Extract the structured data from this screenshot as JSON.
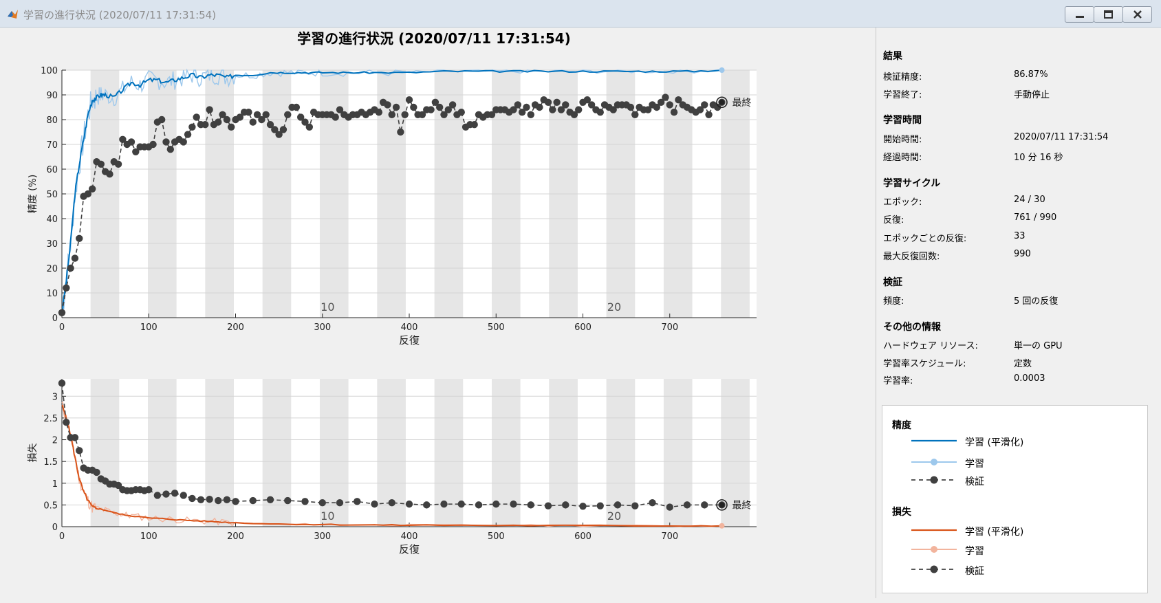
{
  "window": {
    "title": "学習の進行状況 (2020/07/11 17:31:54)",
    "buttons": [
      "minimize",
      "maximize",
      "close"
    ]
  },
  "plot_title": "学習の進行状況 (2020/07/11 17:31:54)",
  "final_label": "最終",
  "chart_data": [
    {
      "type": "line",
      "name": "accuracy",
      "xlabel": "反復",
      "ylabel": "精度 (%)",
      "xlim": [
        0,
        800
      ],
      "ylim": [
        0,
        100
      ],
      "xticks": [
        0,
        100,
        200,
        300,
        400,
        500,
        600,
        700
      ],
      "yticks": [
        0,
        10,
        20,
        30,
        40,
        50,
        60,
        70,
        80,
        90,
        100
      ],
      "epoch_labels": [
        {
          "epoch": "10",
          "x": 306
        },
        {
          "epoch": "20",
          "x": 636
        }
      ],
      "epoch_length": 33,
      "grid": true,
      "series": [
        {
          "name": "学習 (平滑化)",
          "color": "#0072bd",
          "x": [
            0,
            5,
            10,
            15,
            20,
            25,
            30,
            35,
            40,
            45,
            50,
            60,
            70,
            80,
            90,
            100,
            110,
            120,
            130,
            140,
            150,
            160,
            170,
            180,
            190,
            200,
            220,
            240,
            260,
            280,
            300,
            330,
            360,
            400,
            440,
            480,
            520,
            560,
            600,
            640,
            680,
            720,
            760
          ],
          "y": [
            2,
            15,
            30,
            50,
            62,
            72,
            82,
            88,
            89,
            90,
            90,
            89,
            92,
            95,
            94,
            96,
            96,
            95,
            96,
            97,
            98,
            97,
            98,
            98,
            97,
            98,
            98,
            99,
            99,
            99,
            99,
            99,
            99,
            99,
            99.5,
            99.5,
            99.5,
            99.5,
            99.5,
            99.5,
            99.5,
            99.5,
            100
          ]
        },
        {
          "name": "学習",
          "color": "#9dc8ec"
        },
        {
          "name": "検証",
          "color": "#404040",
          "style": "dashed-marker",
          "x": [
            0,
            5,
            10,
            15,
            20,
            25,
            30,
            35,
            40,
            45,
            50,
            55,
            60,
            65,
            70,
            75,
            80,
            85,
            90,
            95,
            100,
            105,
            110,
            115,
            120,
            125,
            130,
            135,
            140,
            145,
            150,
            155,
            160,
            165,
            170,
            175,
            180,
            185,
            190,
            195,
            200,
            205,
            210,
            215,
            220,
            225,
            230,
            235,
            240,
            245,
            250,
            255,
            260,
            265,
            270,
            275,
            280,
            285,
            290,
            295,
            300,
            305,
            310,
            315,
            320,
            325,
            330,
            335,
            340,
            345,
            350,
            355,
            360,
            365,
            370,
            375,
            380,
            385,
            390,
            395,
            400,
            405,
            410,
            415,
            420,
            425,
            430,
            435,
            440,
            445,
            450,
            455,
            460,
            465,
            470,
            475,
            480,
            485,
            490,
            495,
            500,
            505,
            510,
            515,
            520,
            525,
            530,
            535,
            540,
            545,
            550,
            555,
            560,
            565,
            570,
            575,
            580,
            585,
            590,
            595,
            600,
            605,
            610,
            615,
            620,
            625,
            630,
            635,
            640,
            645,
            650,
            655,
            660,
            665,
            670,
            675,
            680,
            685,
            690,
            695,
            700,
            705,
            710,
            715,
            720,
            725,
            730,
            735,
            740,
            745,
            750,
            755,
            760
          ],
          "y": [
            2,
            12,
            20,
            24,
            32,
            49,
            50,
            52,
            63,
            62,
            59,
            58,
            63,
            62,
            72,
            70,
            71,
            67,
            69,
            69,
            69,
            70,
            79,
            80,
            71,
            68,
            71,
            72,
            71,
            74,
            77,
            81,
            78,
            78,
            84,
            78,
            79,
            82,
            80,
            77,
            80,
            81,
            83,
            83,
            79,
            82,
            80,
            82,
            78,
            76,
            74,
            76,
            82,
            85,
            85,
            81,
            79,
            77,
            83,
            82,
            82,
            82,
            82,
            81,
            84,
            82,
            81,
            82,
            82,
            83,
            82,
            83,
            84,
            83,
            87,
            86,
            82,
            85,
            75,
            82,
            88,
            85,
            82,
            82,
            84,
            84,
            87,
            85,
            82,
            84,
            86,
            82,
            83,
            77,
            78,
            78,
            82,
            81,
            82,
            82,
            84,
            84,
            84,
            83,
            84,
            86,
            83,
            85,
            82,
            86,
            85,
            88,
            87,
            84,
            87,
            84,
            86,
            83,
            82,
            84,
            87,
            88,
            86,
            84,
            83,
            86,
            85,
            84,
            86,
            86,
            86,
            85,
            82,
            85,
            84,
            84,
            86,
            85,
            87,
            89,
            86,
            83,
            88,
            86,
            85,
            84,
            83,
            84,
            86,
            82,
            86,
            85,
            87
          ]
        }
      ]
    },
    {
      "type": "line",
      "name": "loss",
      "xlabel": "反復",
      "ylabel": "損失",
      "xlim": [
        0,
        800
      ],
      "ylim": [
        0,
        3.4
      ],
      "xticks": [
        0,
        100,
        200,
        300,
        400,
        500,
        600,
        700
      ],
      "yticks": [
        0,
        0.5,
        1,
        1.5,
        2,
        2.5,
        3
      ],
      "ytick_labels": [
        "0",
        "0.5",
        "1",
        "1.5",
        "2",
        "2.5",
        "3"
      ],
      "epoch_labels": [
        {
          "epoch": "10",
          "x": 306
        },
        {
          "epoch": "20",
          "x": 636
        }
      ],
      "grid": true,
      "series": [
        {
          "name": "学習 (平滑化)",
          "color": "#d95319",
          "x": [
            0,
            5,
            10,
            15,
            20,
            25,
            30,
            35,
            40,
            50,
            60,
            70,
            80,
            100,
            120,
            140,
            160,
            180,
            200,
            250,
            300,
            350,
            400,
            500,
            600,
            700,
            760
          ],
          "y": [
            2.8,
            2.5,
            2.1,
            1.6,
            1.1,
            0.8,
            0.6,
            0.45,
            0.42,
            0.38,
            0.32,
            0.28,
            0.25,
            0.2,
            0.18,
            0.15,
            0.13,
            0.11,
            0.09,
            0.06,
            0.05,
            0.04,
            0.035,
            0.03,
            0.025,
            0.02,
            0.02
          ]
        },
        {
          "name": "学習",
          "color": "#f2b49d"
        },
        {
          "name": "検証",
          "color": "#404040",
          "style": "dashed-marker",
          "x": [
            0,
            5,
            10,
            15,
            20,
            25,
            30,
            35,
            40,
            45,
            50,
            55,
            60,
            65,
            70,
            75,
            80,
            85,
            90,
            95,
            100,
            110,
            120,
            130,
            140,
            150,
            160,
            170,
            180,
            190,
            200,
            220,
            240,
            260,
            280,
            300,
            320,
            340,
            360,
            380,
            400,
            420,
            440,
            460,
            480,
            500,
            520,
            540,
            560,
            580,
            600,
            620,
            640,
            660,
            680,
            700,
            720,
            740,
            760
          ],
          "y": [
            3.3,
            2.4,
            2.05,
            2.05,
            1.75,
            1.35,
            1.3,
            1.3,
            1.25,
            1.1,
            1.05,
            0.98,
            0.98,
            0.95,
            0.85,
            0.83,
            0.83,
            0.85,
            0.85,
            0.83,
            0.85,
            0.72,
            0.75,
            0.77,
            0.72,
            0.65,
            0.62,
            0.63,
            0.6,
            0.62,
            0.58,
            0.6,
            0.62,
            0.6,
            0.58,
            0.55,
            0.55,
            0.58,
            0.52,
            0.55,
            0.52,
            0.5,
            0.52,
            0.52,
            0.5,
            0.52,
            0.52,
            0.5,
            0.48,
            0.5,
            0.47,
            0.48,
            0.5,
            0.48,
            0.55,
            0.45,
            0.5,
            0.5,
            0.5
          ]
        }
      ]
    }
  ],
  "sidebar": {
    "result": {
      "header": "結果",
      "rows": [
        {
          "label": "検証精度:",
          "value": "86.87%"
        },
        {
          "label": "学習終了:",
          "value": "手動停止"
        }
      ]
    },
    "time": {
      "header": "学習時間",
      "rows": [
        {
          "label": "開始時間:",
          "value": "2020/07/11 17:31:54"
        },
        {
          "label": "経過時間:",
          "value": "10 分 16 秒"
        }
      ]
    },
    "cycle": {
      "header": "学習サイクル",
      "rows": [
        {
          "label": "エポック:",
          "value": "24 / 30"
        },
        {
          "label": "反復:",
          "value": "761 / 990"
        },
        {
          "label": "エポックごとの反復:",
          "value": "33"
        },
        {
          "label": "最大反復回数:",
          "value": "990"
        }
      ]
    },
    "validation": {
      "header": "検証",
      "rows": [
        {
          "label": "頻度:",
          "value": "5 回の反復"
        }
      ]
    },
    "other": {
      "header": "その他の情報",
      "rows": [
        {
          "label": "ハードウェア リソース:",
          "value": "単一の GPU"
        },
        {
          "label": "学習率スケジュール:",
          "value": "定数"
        },
        {
          "label": "学習率:",
          "value": "0.0003"
        }
      ]
    }
  },
  "legend": {
    "accuracy_header": "精度",
    "loss_header": "損失",
    "smoothed": "学習 (平滑化)",
    "training": "学習",
    "validation": "検証",
    "colors": {
      "acc_smoothed": "#0072bd",
      "acc_training": "#9dc8ec",
      "loss_smoothed": "#d95319",
      "loss_training": "#f2b49d",
      "validation": "#404040"
    }
  }
}
